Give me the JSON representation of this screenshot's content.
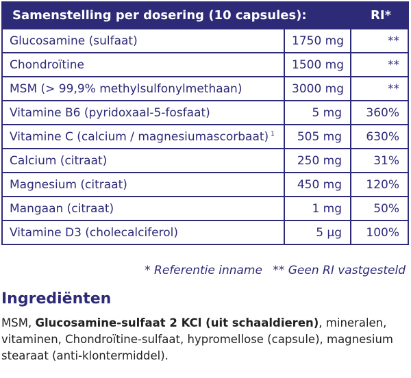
{
  "table": {
    "header": {
      "title": "Samenstelling per dosering (10 capsules):",
      "ri": "RI*"
    },
    "rows": [
      {
        "name": "Glucosamine (sulfaat)",
        "sup": "",
        "amount": "1750 mg",
        "ri": "**"
      },
      {
        "name": "Chondroïtine",
        "sup": "",
        "amount": "1500 mg",
        "ri": "**"
      },
      {
        "name": "MSM (> 99,9% methylsulfonylmethaan)",
        "sup": "",
        "amount": "3000 mg",
        "ri": "**"
      },
      {
        "name": "Vitamine B6 (pyridoxaal-5-fosfaat)",
        "sup": "",
        "amount": "5 mg",
        "ri": "360%"
      },
      {
        "name": "Vitamine C (calcium / magnesiumascorbaat)",
        "sup": "1",
        "amount": "505 mg",
        "ri": "630%"
      },
      {
        "name": "Calcium (citraat)",
        "sup": "",
        "amount": "250 mg",
        "ri": "31%"
      },
      {
        "name": "Magnesium (citraat)",
        "sup": "",
        "amount": "450 mg",
        "ri": "120%"
      },
      {
        "name": "Mangaan (citraat)",
        "sup": "",
        "amount": "1 mg",
        "ri": "50%"
      },
      {
        "name": "Vitamine D3 (cholecalciferol)",
        "sup": "",
        "amount": "5 µg",
        "ri": "100%"
      }
    ]
  },
  "footnote": {
    "ri_note": "* Referentie inname",
    "no_ri_note": "** Geen RI vastgesteld"
  },
  "ingredients": {
    "title": "Ingrediënten",
    "text_before": "MSM, ",
    "bold": "Glucosamine-sulfaat 2 KCl (uit schaaldieren)",
    "text_after": ", mineralen, vitaminen, Chondroïtine-sulfaat, hypromellose (capsule), magnesium stearaat (anti-klontermiddel)."
  },
  "colors": {
    "primary": "#2d2a78",
    "text": "#222222",
    "background": "#ffffff"
  }
}
